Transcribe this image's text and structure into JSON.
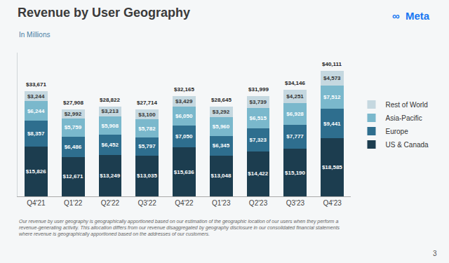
{
  "chart_data": {
    "type": "bar",
    "stacked": true,
    "title": "Revenue by User Geography",
    "subtitle": "In Millions",
    "logo": "∞  Meta",
    "footnote": "Our revenue by user geography is geographically apportioned based on our estimation of the geographic location of our users when they perform a revenue-generating activity. This allocation differs from our revenue disaggregated by geography disclosure in our consolidated financial statements where revenue is geographically apportioned based on the addresses of our customers.",
    "page_number": "3",
    "categories": [
      "Q4'21",
      "Q1'22",
      "Q2'22",
      "Q3'22",
      "Q4'22",
      "Q1'23",
      "Q2'23",
      "Q3'23",
      "Q4'23"
    ],
    "series": [
      {
        "name": "US & Canada",
        "color": "#1c3d4f",
        "values": [
          15826,
          12671,
          13249,
          13035,
          15636,
          13048,
          14422,
          15190,
          18585
        ],
        "value_labels": [
          "$15,826",
          "$12,671",
          "$13,249",
          "$13,035",
          "$15,636",
          "$13,048",
          "$14,422",
          "$15,190",
          "$18,585"
        ]
      },
      {
        "name": "Europe",
        "color": "#2e6e8e",
        "values": [
          8357,
          6486,
          6452,
          5797,
          7050,
          6345,
          7323,
          7777,
          9441
        ],
        "value_labels": [
          "$8,357",
          "$6,486",
          "$6,452",
          "$5,797",
          "$7,050",
          "$6,345",
          "$7,323",
          "$7,777",
          "$9,441"
        ]
      },
      {
        "name": "Asia-Pacific",
        "color": "#7ab8cc",
        "values": [
          6244,
          5759,
          5908,
          5782,
          6050,
          5960,
          6515,
          6928,
          7512
        ],
        "value_labels": [
          "$6,244",
          "$5,759",
          "$5,908",
          "$5,782",
          "$6,050",
          "$5,960",
          "$6,515",
          "$6,928",
          "$7,512"
        ]
      },
      {
        "name": "Rest of World",
        "color": "#c5d8e0",
        "values": [
          3244,
          2992,
          3213,
          3100,
          3429,
          3292,
          3739,
          4251,
          4573
        ],
        "value_labels": [
          "$3,244",
          "$2,992",
          "$3,213",
          "$3,100",
          "$3,429",
          "$3,292",
          "$3,739",
          "$4,251",
          "$4,573"
        ]
      }
    ],
    "totals": [
      33671,
      27908,
      28822,
      27714,
      32165,
      28645,
      31999,
      34146,
      40111
    ],
    "total_labels": [
      "$33,671",
      "$27,908",
      "$28,822",
      "$27,714",
      "$32,165",
      "$28,645",
      "$31,999",
      "$34,146",
      "$40,111"
    ],
    "ylim": [
      0,
      46000
    ],
    "yticks": [],
    "tick_labels": "x",
    "data_labels": true,
    "grid": false,
    "legend": "right"
  }
}
